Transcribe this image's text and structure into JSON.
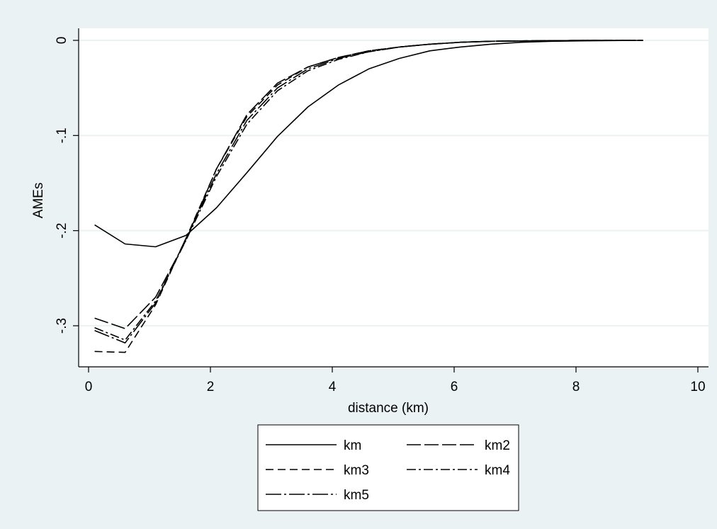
{
  "chart_data": {
    "type": "line",
    "title": "",
    "xlabel": "distance (km)",
    "ylabel": "AMEs",
    "xlim": [
      0,
      10
    ],
    "ylim": [
      -0.34,
      0.01
    ],
    "xticks": [
      0,
      2,
      4,
      6,
      8,
      10
    ],
    "xtick_labels": [
      "0",
      "2",
      "4",
      "6",
      "8",
      "10"
    ],
    "yticks": [
      0,
      -0.1,
      -0.2,
      -0.3
    ],
    "ytick_labels": [
      "0",
      "-.1",
      "-.2",
      "-.3"
    ],
    "grid": "horizontal",
    "legend_position": "bottom",
    "colors": {
      "background": "#eaf2f3",
      "plot_area": "#ffffff",
      "grid": "#eaf2f3",
      "line": "#000000"
    },
    "series": [
      {
        "name": "km",
        "dash": "solid",
        "x": [
          0.1,
          0.6,
          1.1,
          1.6,
          2.1,
          2.6,
          3.1,
          3.6,
          4.1,
          4.6,
          5.1,
          5.6,
          6.1,
          6.6,
          7.1,
          7.6,
          8.1,
          8.6,
          9.1
        ],
        "y": [
          -0.194,
          -0.214,
          -0.217,
          -0.205,
          -0.176,
          -0.139,
          -0.101,
          -0.07,
          -0.047,
          -0.03,
          -0.019,
          -0.011,
          -0.007,
          -0.004,
          -0.002,
          -0.001,
          -0.0005,
          -0.0002,
          0
        ]
      },
      {
        "name": "km2",
        "dash": "longdash",
        "x": [
          0.1,
          0.6,
          1.1,
          1.6,
          2.1,
          2.6,
          3.1,
          3.6,
          4.1,
          4.6,
          5.1,
          5.6,
          6.1,
          6.6,
          7.1,
          7.6,
          8.1,
          8.6,
          9.1
        ],
        "y": [
          -0.292,
          -0.303,
          -0.27,
          -0.21,
          -0.135,
          -0.078,
          -0.045,
          -0.028,
          -0.018,
          -0.011,
          -0.007,
          -0.004,
          -0.002,
          -0.001,
          -0.0006,
          -0.0003,
          -0.0001,
          0,
          0
        ]
      },
      {
        "name": "km3",
        "dash": "dash",
        "x": [
          0.1,
          0.6,
          1.1,
          1.6,
          2.1,
          2.6,
          3.1,
          3.6,
          4.1,
          4.6,
          5.1,
          5.6,
          6.1,
          6.6,
          7.1,
          7.6,
          8.1,
          8.6,
          9.1
        ],
        "y": [
          -0.327,
          -0.328,
          -0.278,
          -0.208,
          -0.135,
          -0.08,
          -0.047,
          -0.028,
          -0.018,
          -0.011,
          -0.007,
          -0.004,
          -0.002,
          -0.001,
          -0.0006,
          -0.0003,
          -0.0001,
          0,
          0
        ]
      },
      {
        "name": "km4",
        "dash": "dashdot",
        "x": [
          0.1,
          0.6,
          1.1,
          1.6,
          2.1,
          2.6,
          3.1,
          3.6,
          4.1,
          4.6,
          5.1,
          5.6,
          6.1,
          6.6,
          7.1,
          7.6,
          8.1,
          8.6,
          9.1
        ],
        "y": [
          -0.302,
          -0.315,
          -0.274,
          -0.21,
          -0.143,
          -0.088,
          -0.053,
          -0.032,
          -0.02,
          -0.012,
          -0.007,
          -0.004,
          -0.002,
          -0.001,
          -0.0006,
          -0.0003,
          -0.0001,
          0,
          0
        ]
      },
      {
        "name": "km5",
        "dash": "longdashdot",
        "x": [
          0.1,
          0.6,
          1.1,
          1.6,
          2.1,
          2.6,
          3.1,
          3.6,
          4.1,
          4.6,
          5.1,
          5.6,
          6.1,
          6.6,
          7.1,
          7.6,
          8.1,
          8.6,
          9.1
        ],
        "y": [
          -0.305,
          -0.318,
          -0.276,
          -0.208,
          -0.14,
          -0.084,
          -0.05,
          -0.03,
          -0.019,
          -0.012,
          -0.007,
          -0.004,
          -0.002,
          -0.001,
          -0.0006,
          -0.0003,
          -0.0001,
          0,
          0
        ]
      }
    ]
  }
}
